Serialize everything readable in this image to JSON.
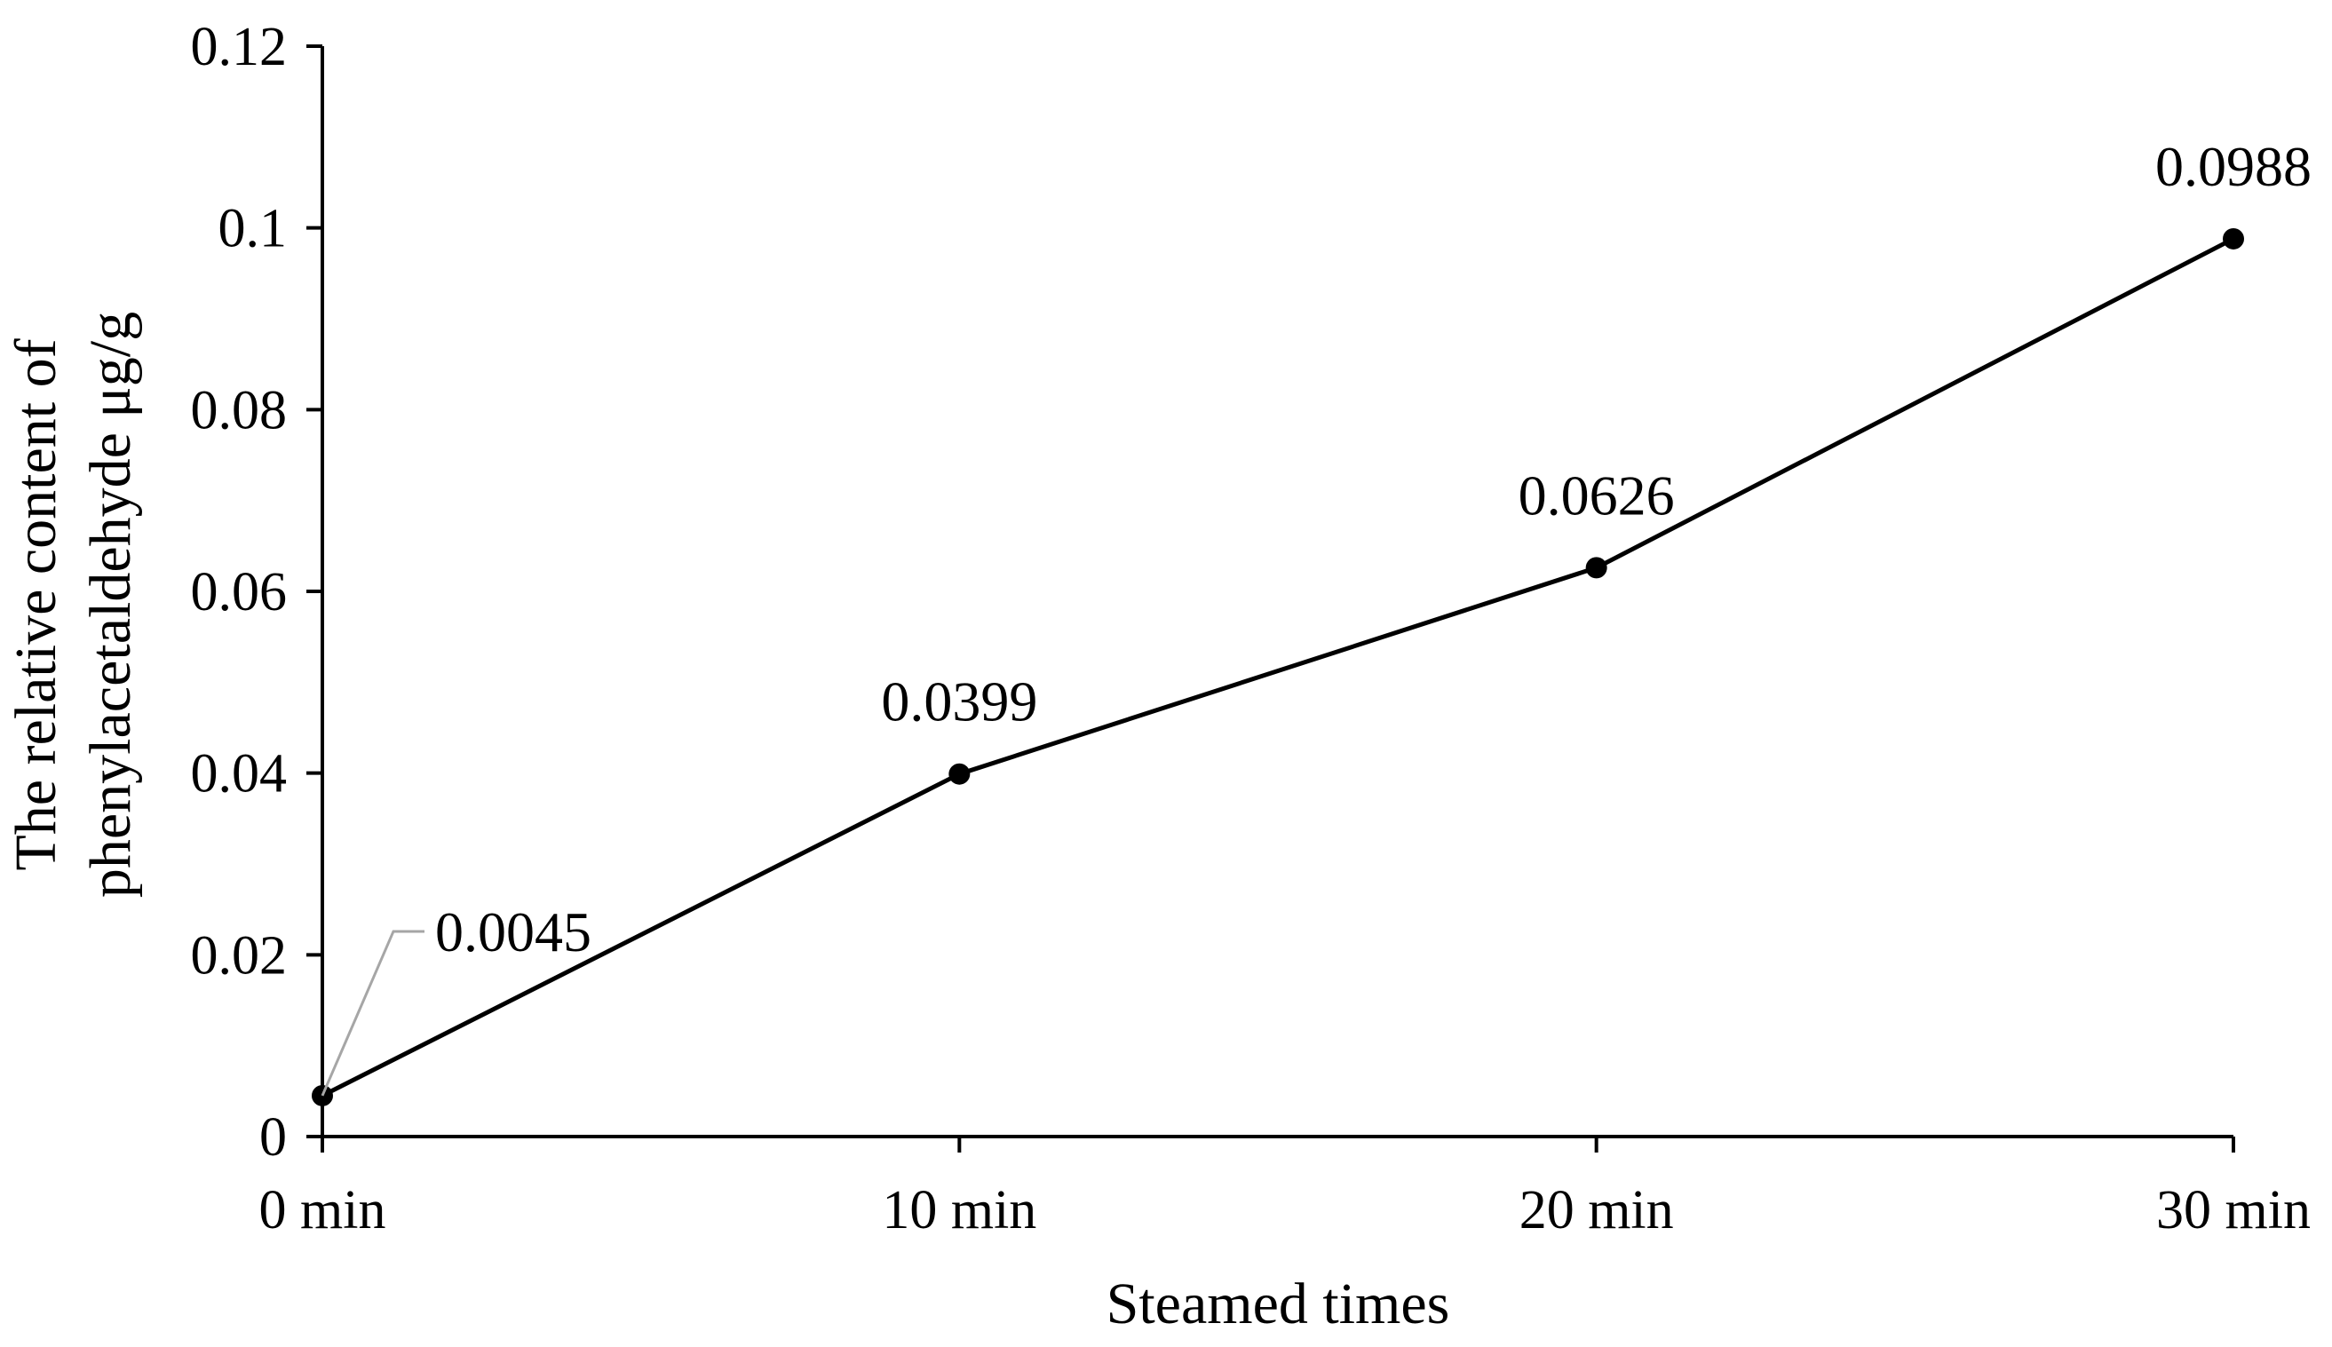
{
  "chart_data": {
    "type": "line",
    "title": "",
    "xlabel": "Steamed times",
    "ylabel_line1": "The relative content of",
    "ylabel_line2": "phenylacetaldehyde μg/g",
    "categories": [
      "0 min",
      "10 min",
      "20 min",
      "30 min"
    ],
    "series": [
      {
        "values": [
          0.0045,
          0.0399,
          0.0626,
          0.0988
        ],
        "labels": [
          "0.0045",
          "0.0399",
          "0.0626",
          "0.0988"
        ],
        "color": "#000000"
      }
    ],
    "ylim": [
      0,
      0.12
    ],
    "yticks": [
      0,
      0.02,
      0.04,
      0.06,
      0.08,
      0.1,
      0.12
    ],
    "ytick_labels": [
      "0",
      "0.02",
      "0.04",
      "0.06",
      "0.08",
      "0.1",
      "0.12"
    ],
    "grid": false,
    "legend": "none",
    "leader_line_color": "#a6a6a6"
  }
}
